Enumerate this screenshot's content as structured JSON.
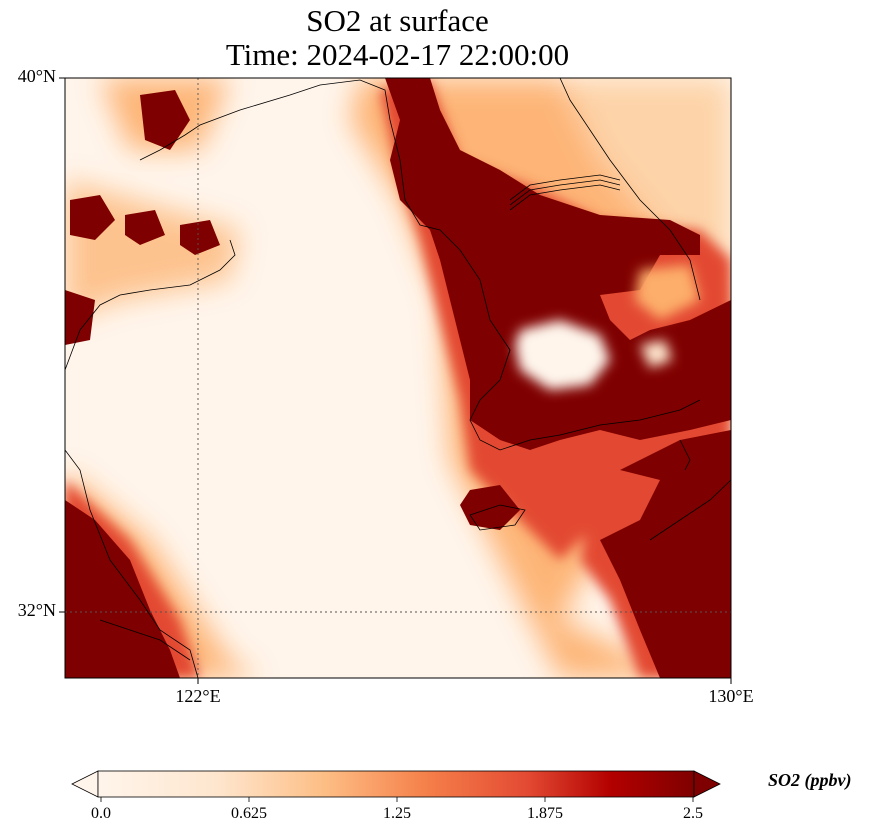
{
  "title": {
    "line1": "SO2 at surface",
    "line2": "Time: 2024-02-17 22:00:00"
  },
  "map": {
    "lat_ticks": [
      "40°N",
      "32°N"
    ],
    "lon_ticks": [
      "122°E",
      "130°E"
    ],
    "gridlines": "dotted",
    "colormap": [
      "#fff5eb",
      "#fdd0a2",
      "#fdae6b",
      "#f16913",
      "#d94801",
      "#a50f15",
      "#7f0000"
    ],
    "field_max_color": "#7f0000"
  },
  "colorbar": {
    "label": "SO2 (ppbv)",
    "ticks": [
      "0.0",
      "0.625",
      "1.25",
      "1.875",
      "2.5"
    ],
    "min": 0.0,
    "max": 2.5,
    "extend": "both"
  }
}
